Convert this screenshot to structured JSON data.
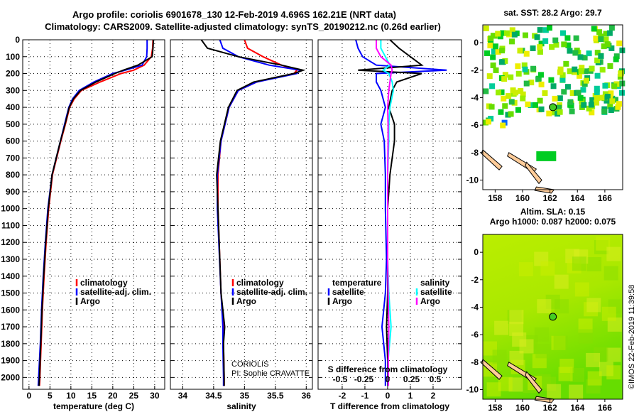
{
  "title": "Argo profile: coriolis 6901678_130 12-Feb-2019 4.696S 162.21E (NRT data)",
  "subtitle": "Climatology: CARS2009. Satellite-adjusted climatology: synTS_20190212.nc (0.26d earlier)",
  "credit": "CORIOLIS",
  "pi": "PI: Sophie CRAVATTE",
  "timestamp": "©IMOS 22-Feb-2019 11:39:58",
  "colors": {
    "climatology": "#ff0000",
    "satellite": "#0000ff",
    "argo": "#000000",
    "sal_satellite": "#00ffff",
    "sal_argo": "#ff00ff",
    "land": "#ffcc99"
  },
  "chart_data": [
    {
      "type": "line",
      "xlabel": "temperature (deg C)",
      "xticks": [
        0,
        5,
        10,
        15,
        20,
        25,
        30
      ],
      "xlim": [
        -1.5,
        32.4
      ],
      "ylim": [
        0,
        2070
      ],
      "yticks": [
        0,
        100,
        200,
        300,
        400,
        500,
        600,
        700,
        800,
        900,
        1000,
        1100,
        1200,
        1300,
        1400,
        1500,
        1600,
        1700,
        1800,
        1900,
        2000
      ],
      "legend": [
        "climatology",
        "satellite-adj. clim.",
        "Argo"
      ],
      "depth": [
        0,
        50,
        100,
        150,
        180,
        200,
        250,
        300,
        350,
        400,
        500,
        600,
        700,
        800,
        1000,
        1200,
        1400,
        1600,
        1800,
        2000,
        2050
      ],
      "series": [
        {
          "name": "climatology",
          "values": [
            29.6,
            29.5,
            29.2,
            27.5,
            25,
            22,
            17,
            12.5,
            10.8,
            9.7,
            8.7,
            7.6,
            6.6,
            5.6,
            4.7,
            4.1,
            3.6,
            3.2,
            2.9,
            2.6,
            2.5
          ]
        },
        {
          "name": "satellite-adj. clim.",
          "values": [
            28.2,
            28.2,
            28.1,
            27,
            23,
            20,
            15.5,
            12,
            10.4,
            9.5,
            8.5,
            7.5,
            6.5,
            5.5,
            4.5,
            3.9,
            3.4,
            3.0,
            2.7,
            2.3,
            2.2
          ]
        },
        {
          "name": "Argo",
          "values": [
            29.7,
            29.6,
            29.4,
            26,
            22.5,
            20.5,
            16,
            12.3,
            10.6,
            9.6,
            8.6,
            7.5,
            6.5,
            5.5,
            4.6,
            4.0,
            3.5,
            3.1,
            2.8,
            2.5,
            2.4
          ]
        }
      ]
    },
    {
      "type": "line",
      "xlabel": "salinity",
      "xticks": [
        34,
        34.5,
        35,
        35.5,
        36
      ],
      "xlim": [
        33.8,
        36.1
      ],
      "ylim": [
        0,
        2070
      ],
      "legend": [
        "climatology",
        "satellite-adj. clim.",
        "Argo"
      ],
      "depth": [
        0,
        50,
        100,
        150,
        180,
        200,
        250,
        300,
        400,
        600,
        800,
        1000,
        1500,
        1700,
        1800,
        2000,
        2050
      ],
      "series": [
        {
          "name": "climatology",
          "values": [
            35.0,
            35.05,
            35.3,
            35.6,
            35.85,
            35.8,
            35.2,
            34.9,
            34.75,
            34.62,
            34.57,
            34.57,
            34.62,
            34.66,
            34.66,
            34.67,
            34.67
          ]
        },
        {
          "name": "satellite-adj. clim.",
          "values": [
            34.6,
            34.65,
            34.9,
            35.4,
            35.9,
            35.85,
            35.2,
            34.9,
            34.75,
            34.62,
            34.56,
            34.56,
            34.62,
            34.65,
            34.65,
            34.66,
            34.66
          ]
        },
        {
          "name": "Argo",
          "values": [
            34.3,
            34.4,
            34.9,
            35.6,
            35.95,
            35.8,
            35.15,
            34.88,
            34.74,
            34.61,
            34.55,
            34.57,
            34.62,
            34.68,
            34.66,
            34.67,
            34.67
          ]
        }
      ]
    },
    {
      "type": "line",
      "xlabel": "T difference from climatology",
      "x2label": "S difference from climatology",
      "xticks": [
        -2,
        -1,
        0,
        1,
        2
      ],
      "x2ticks": [
        -0.5,
        -0.25,
        0,
        0.25,
        0.5
      ],
      "xlim": [
        -3.06,
        3.25
      ],
      "legend_t": [
        "temperature",
        "satellite",
        "Argo"
      ],
      "legend_s": [
        "salinity",
        "satellite",
        "Argo"
      ],
      "depth": [
        0,
        50,
        100,
        150,
        180,
        200,
        250,
        300,
        400,
        500,
        600,
        800,
        1000,
        1300,
        1500,
        1700,
        1900,
        2050
      ],
      "series": [
        {
          "name": "T satellite",
          "values": [
            -1.4,
            -1.3,
            -1.1,
            -0.5,
            2.6,
            -0.5,
            -0.5,
            -0.3,
            -0.1,
            -0.3,
            -0.15,
            -0.1,
            -0.1,
            -0.05,
            -0.1,
            -0.25,
            -0.1,
            -0.1
          ]
        },
        {
          "name": "T Argo",
          "values": [
            0.1,
            0.5,
            1.0,
            1.5,
            -1.3,
            1.5,
            0.4,
            0.2,
            0.05,
            0.3,
            0.3,
            0.1,
            0.0,
            0.0,
            0.0,
            -0.05,
            0.0,
            0.0
          ]
        },
        {
          "name": "S satellite",
          "values": [
            -0.3,
            -0.3,
            -0.1,
            0.1,
            -0.2,
            0.05,
            0.2,
            0.25,
            0.1,
            0.05,
            0.05,
            0.0,
            0.0,
            0.0,
            0.05,
            0.15,
            0.02,
            0.02
          ]
        },
        {
          "name": "S Argo",
          "values": [
            -0.5,
            -0.5,
            -0.3,
            0.15,
            0.2,
            0.15,
            0.1,
            0.05,
            0.0,
            0.02,
            0.02,
            0.0,
            0.0,
            0.0,
            0.02,
            0.05,
            0.03,
            0.03
          ]
        }
      ]
    },
    {
      "type": "heatmap",
      "title": "sat. SST: 28.2 Argo: 29.7",
      "xticks": [
        158,
        160,
        162,
        164,
        166
      ],
      "yticks": [
        0,
        -2,
        -4,
        -6,
        -8,
        -10
      ],
      "xlim": [
        157.1,
        167.3
      ],
      "ylim": [
        -10.7,
        1.3
      ],
      "argo_position": [
        162.21,
        -4.696
      ]
    },
    {
      "type": "heatmap",
      "title": "Altim. SLA: 0.15",
      "subtitle": "Argo h1000: 0.087 h2000: 0.075",
      "xticks": [
        158,
        160,
        162,
        164,
        166
      ],
      "yticks": [
        0,
        -2,
        -4,
        -6,
        -8,
        -10
      ],
      "xlim": [
        157.1,
        167.3
      ],
      "ylim": [
        -10.7,
        1.3
      ],
      "argo_position": [
        162.21,
        -4.696
      ]
    }
  ]
}
